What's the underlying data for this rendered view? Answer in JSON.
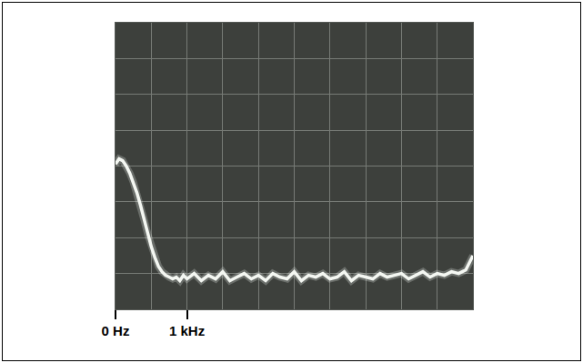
{
  "chart_data": {
    "type": "line",
    "x": [
      0,
      50,
      100,
      150,
      200,
      250,
      300,
      350,
      400,
      450,
      500,
      550,
      600,
      650,
      700,
      750,
      800,
      850,
      900,
      950,
      1000,
      1100,
      1200,
      1300,
      1400,
      1500,
      1600,
      1700,
      1800,
      1900,
      2000,
      2100,
      2200,
      2300,
      2400,
      2500,
      2600,
      2700,
      2800,
      2900,
      3000,
      3100,
      3200,
      3300,
      3400,
      3500,
      3600,
      3700,
      3800,
      3900,
      4000,
      4100,
      4200,
      4300,
      4400,
      4500,
      4600,
      4700,
      4800,
      4900,
      5000
    ],
    "values": [
      4.05,
      4.2,
      4.15,
      4.0,
      3.8,
      3.55,
      3.25,
      2.9,
      2.5,
      2.1,
      1.75,
      1.45,
      1.2,
      1.05,
      0.95,
      0.9,
      0.85,
      0.9,
      0.8,
      0.95,
      0.85,
      1.0,
      0.8,
      0.95,
      0.85,
      1.05,
      0.8,
      0.9,
      1.0,
      0.85,
      0.95,
      0.8,
      1.0,
      0.9,
      0.85,
      1.05,
      0.8,
      0.95,
      0.9,
      1.0,
      0.85,
      0.9,
      1.05,
      0.8,
      0.95,
      0.9,
      0.85,
      1.0,
      0.9,
      0.95,
      1.0,
      0.85,
      0.95,
      1.05,
      0.9,
      1.0,
      0.95,
      1.05,
      1.0,
      1.1,
      1.5
    ],
    "color": "#f4f7f2",
    "xlim": [
      0,
      5000
    ],
    "xticks": [
      {
        "value": 0,
        "label": "0 Hz"
      },
      {
        "value": 1000,
        "label": "1 kHz"
      }
    ],
    "ylim": [
      0,
      8
    ],
    "yticks": [
      0,
      1,
      2,
      3,
      4,
      5,
      6,
      7,
      8
    ],
    "tick_labels": "x",
    "grid": true
  }
}
